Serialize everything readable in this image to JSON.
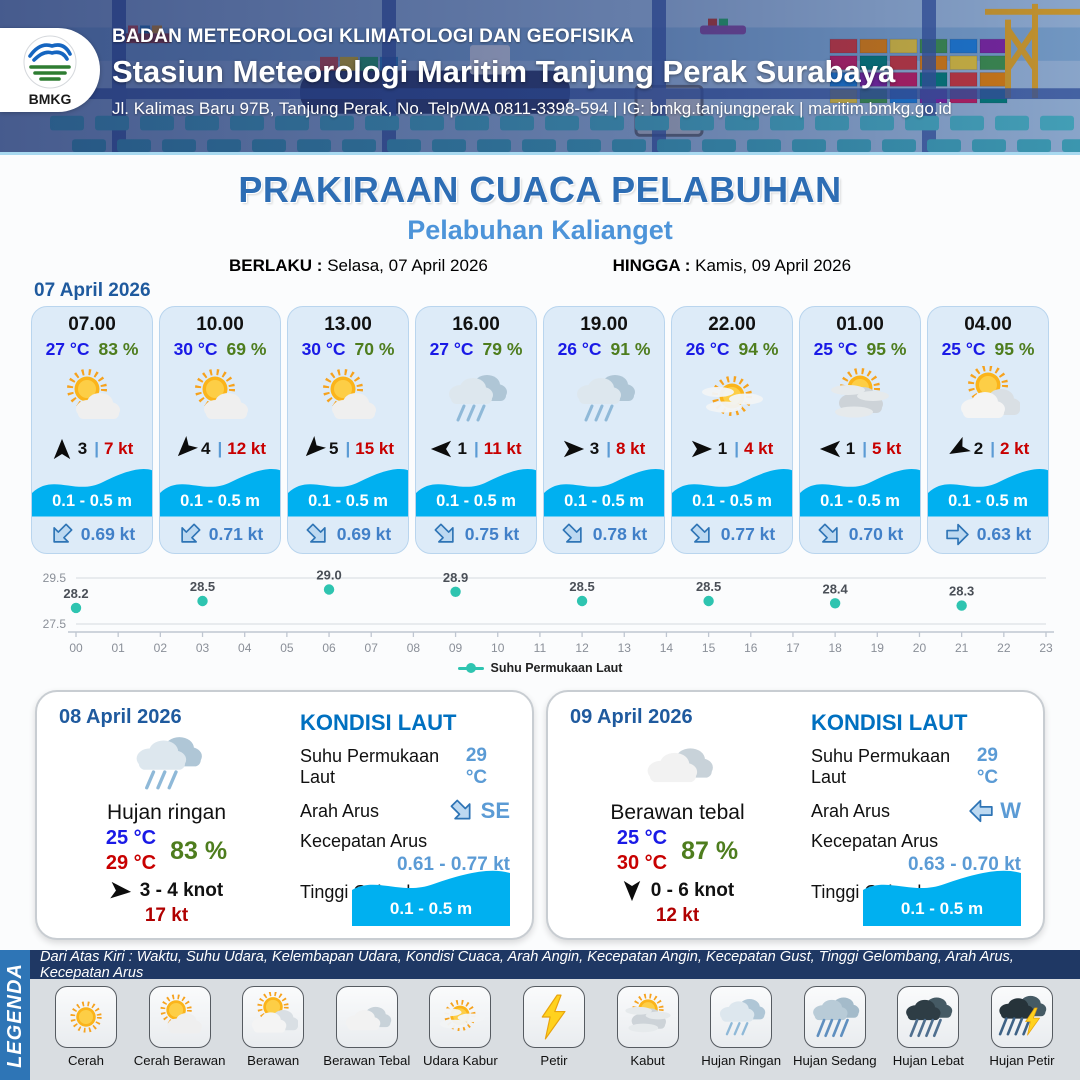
{
  "header": {
    "org": "BADAN METEOROLOGI KLIMATOLOGI DAN GEOFISIKA",
    "station": "Stasiun Meteorologi Maritim Tanjung Perak Surabaya",
    "address": "Jl. Kalimas Baru 97B, Tanjung Perak, No. Telp/WA 0811-3398-594 | IG: bmkg.tanjungperak | maritim.bmkg.go.id",
    "logo_label": "BMKG"
  },
  "title": {
    "main": "PRAKIRAAN CUACA PELABUHAN",
    "port": "Pelabuhan Kalianget",
    "berlaku_label": "BERLAKU :",
    "berlaku_value": "Selasa, 07 April 2026",
    "hingga_label": "HINGGA :",
    "hingga_value": "Kamis, 09 April 2026"
  },
  "forecast": {
    "date": "07 April 2026",
    "separator": "|",
    "cards": [
      {
        "time": "07.00",
        "temp": "27 °C",
        "humidity": "83 %",
        "icon": "cerah-berawan",
        "wind_deg": 0,
        "wind_num": "3",
        "gust": "7 kt",
        "wave": "0.1 - 0.5 m",
        "current_deg": 225,
        "current_speed": "0.69 kt"
      },
      {
        "time": "10.00",
        "temp": "30 °C",
        "humidity": "69 %",
        "icon": "cerah-berawan",
        "wind_deg": 225,
        "wind_num": "4",
        "gust": "12 kt",
        "wave": "0.1 - 0.5 m",
        "current_deg": 225,
        "current_speed": "0.71 kt"
      },
      {
        "time": "13.00",
        "temp": "30 °C",
        "humidity": "70 %",
        "icon": "cerah-berawan",
        "wind_deg": 225,
        "wind_num": "5",
        "gust": "15 kt",
        "wave": "0.1 - 0.5 m",
        "current_deg": 135,
        "current_speed": "0.69 kt"
      },
      {
        "time": "16.00",
        "temp": "27 °C",
        "humidity": "79 %",
        "icon": "hujan-ringan",
        "wind_deg": 270,
        "wind_num": "1",
        "gust": "11 kt",
        "wave": "0.1 - 0.5 m",
        "current_deg": 135,
        "current_speed": "0.75 kt"
      },
      {
        "time": "19.00",
        "temp": "26 °C",
        "humidity": "91 %",
        "icon": "hujan-ringan",
        "wind_deg": 90,
        "wind_num": "3",
        "gust": "8 kt",
        "wave": "0.1 - 0.5 m",
        "current_deg": 135,
        "current_speed": "0.78 kt"
      },
      {
        "time": "22.00",
        "temp": "26 °C",
        "humidity": "94 %",
        "icon": "udara-kabur",
        "wind_deg": 90,
        "wind_num": "1",
        "gust": "4 kt",
        "wave": "0.1 - 0.5 m",
        "current_deg": 135,
        "current_speed": "0.77 kt"
      },
      {
        "time": "01.00",
        "temp": "25 °C",
        "humidity": "95 %",
        "icon": "kabut",
        "wind_deg": 270,
        "wind_num": "1",
        "gust": "5 kt",
        "wave": "0.1 - 0.5 m",
        "current_deg": 135,
        "current_speed": "0.70 kt"
      },
      {
        "time": "04.00",
        "temp": "25 °C",
        "humidity": "95 %",
        "icon": "berawan",
        "wind_deg": 240,
        "wind_num": "2",
        "gust": "2 kt",
        "wave": "0.1 - 0.5 m",
        "current_deg": 90,
        "current_speed": "0.63 kt"
      }
    ]
  },
  "chart_data": {
    "type": "line",
    "title": "",
    "legend": "Suhu Permukaan Laut",
    "color": "#2EC4B0",
    "ylim": [
      27.5,
      29.5
    ],
    "y_ticks": [
      "29.5",
      "27.5"
    ],
    "x_ticks": [
      "00",
      "01",
      "02",
      "03",
      "04",
      "05",
      "06",
      "07",
      "08",
      "09",
      "10",
      "11",
      "12",
      "13",
      "14",
      "15",
      "16",
      "17",
      "18",
      "19",
      "20",
      "21",
      "22",
      "23"
    ],
    "points": [
      {
        "x": 0,
        "y": 28.2
      },
      {
        "x": 3,
        "y": 28.5
      },
      {
        "x": 6,
        "y": 29.0
      },
      {
        "x": 9,
        "y": 28.9
      },
      {
        "x": 12,
        "y": 28.5
      },
      {
        "x": 15,
        "y": 28.5
      },
      {
        "x": 18,
        "y": 28.4
      },
      {
        "x": 21,
        "y": 28.3
      }
    ],
    "grid": true
  },
  "day_cards": [
    {
      "date": "08 April 2026",
      "icon": "hujan-ringan",
      "condition": "Hujan ringan",
      "temp_min": "25 °C",
      "temp_max": "29 °C",
      "humidity": "83 %",
      "wind_deg": 95,
      "wind": "3 - 4 knot",
      "gust": "17 kt",
      "sea": {
        "title": "KONDISI LAUT",
        "sst_label": "Suhu Permukaan Laut",
        "sst": "29 °C",
        "arus_label": "Arah Arus",
        "arus_dir": "SE",
        "arus_deg": 135,
        "speed_label": "Kecepatan Arus",
        "speed": "0.61  - 0.77 kt",
        "wave_label": "Tinggi Gelombang",
        "wave": "0.1 - 0.5 m"
      }
    },
    {
      "date": "09 April 2026",
      "icon": "berawan-tebal",
      "condition": "Berawan tebal",
      "temp_min": "25 °C",
      "temp_max": "30 °C",
      "humidity": "87 %",
      "wind_deg": 180,
      "wind": "0  - 6 knot",
      "gust": "12 kt",
      "sea": {
        "title": "KONDISI LAUT",
        "sst_label": "Suhu Permukaan Laut",
        "sst": "29 °C",
        "arus_label": "Arah Arus",
        "arus_dir": "W",
        "arus_deg": 270,
        "speed_label": "Kecepatan Arus",
        "speed": "0.63 - 0.70 kt",
        "wave_label": "Tinggi Gelombang",
        "wave": "0.1 - 0.5 m"
      }
    }
  ],
  "legend": {
    "vertical_label": "LEGENDA",
    "header": "Dari Atas Kiri : Waktu, Suhu Udara, Kelembapan Udara, Kondisi Cuaca, Arah Angin, Kecepatan Angin, Kecepatan Gust, Tinggi Gelombang, Arah Arus, Kecepatan Arus",
    "items": [
      {
        "icon": "cerah",
        "label": "Cerah"
      },
      {
        "icon": "cerah-berawan",
        "label": "Cerah Berawan"
      },
      {
        "icon": "berawan",
        "label": "Berawan"
      },
      {
        "icon": "berawan-tebal",
        "label": "Berawan Tebal"
      },
      {
        "icon": "udara-kabur",
        "label": "Udara Kabur"
      },
      {
        "icon": "petir",
        "label": "Petir"
      },
      {
        "icon": "kabut",
        "label": "Kabut"
      },
      {
        "icon": "hujan-ringan",
        "label": "Hujan Ringan"
      },
      {
        "icon": "hujan-sedang",
        "label": "Hujan Sedang"
      },
      {
        "icon": "hujan-lebat",
        "label": "Hujan Lebat"
      },
      {
        "icon": "hujan-petir",
        "label": "Hujan Petir"
      }
    ]
  },
  "colors": {
    "wave_blue": "#00B0F0",
    "temp_blue": "#1A1AE6",
    "humidity_green": "#4E7D1E",
    "gust_red": "#C80000",
    "title_blue": "#2D6DB4",
    "subtitle_blue": "#4D94D9",
    "kondisi_blue": "#0070C0",
    "value_blue": "#5B9BD5",
    "chart_teal": "#2EC4B0"
  }
}
